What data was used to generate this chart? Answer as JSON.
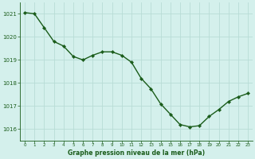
{
  "x": [
    0,
    1,
    2,
    3,
    4,
    5,
    6,
    7,
    8,
    9,
    10,
    11,
    12,
    13,
    14,
    15,
    16,
    17,
    18,
    19,
    20,
    21,
    22,
    23
  ],
  "y": [
    1021.05,
    1021.0,
    1020.4,
    1019.8,
    1019.6,
    1019.15,
    1019.0,
    1019.2,
    1019.35,
    1019.35,
    1019.2,
    1018.9,
    1018.2,
    1017.75,
    1017.1,
    1016.65,
    1016.2,
    1016.1,
    1016.15,
    1016.55,
    1016.85,
    1017.2,
    1017.4,
    1017.55
  ],
  "line_color": "#1a5c1a",
  "marker": "D",
  "marker_size": 2.2,
  "background_color": "#d4f0ec",
  "grid_color": "#b8dcd6",
  "xlabel": "Graphe pression niveau de la mer (hPa)",
  "xlabel_color": "#1a5c1a",
  "tick_color": "#1a5c1a",
  "axis_color": "#1a5c1a",
  "ylim": [
    1015.5,
    1021.5
  ],
  "xlim": [
    -0.5,
    23.5
  ],
  "yticks": [
    1016,
    1017,
    1018,
    1019,
    1020,
    1021
  ],
  "xticks": [
    0,
    1,
    2,
    3,
    4,
    5,
    6,
    7,
    8,
    9,
    10,
    11,
    12,
    13,
    14,
    15,
    16,
    17,
    18,
    19,
    20,
    21,
    22,
    23
  ]
}
